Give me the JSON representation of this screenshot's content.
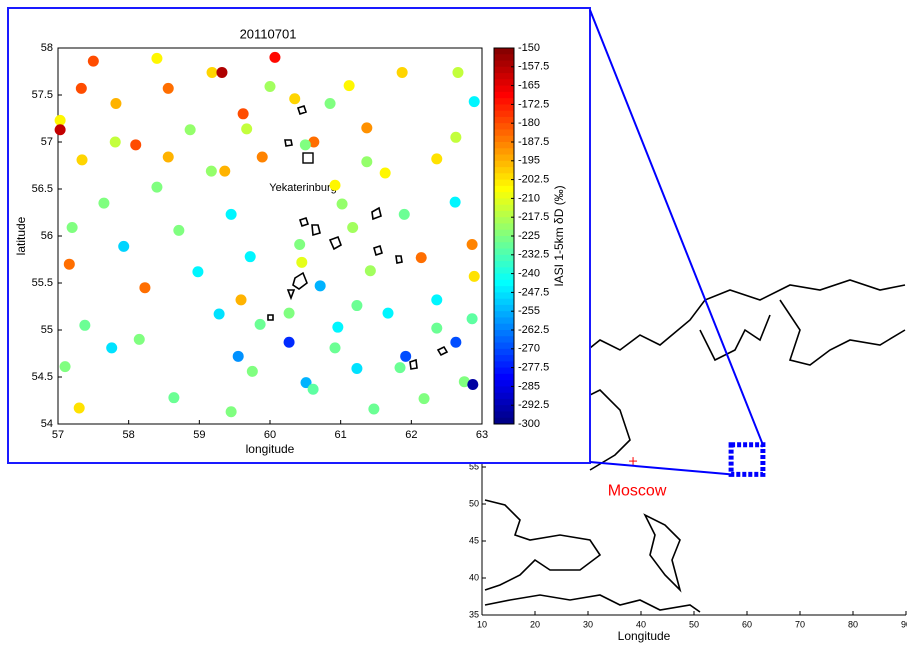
{
  "chart_data": [
    {
      "type": "scatter",
      "title": "20110701",
      "xlabel": "longitude",
      "ylabel": "latitude",
      "colorbar_label": "IASI 1-5km δD (‰)",
      "annotation": "Yekaterinburg",
      "xlim": [
        57,
        63
      ],
      "ylim": [
        54,
        58
      ],
      "xticks": [
        57,
        58,
        59,
        60,
        61,
        62,
        63
      ],
      "yticks": [
        54,
        54.5,
        55,
        55.5,
        56,
        56.5,
        57,
        57.5,
        58
      ],
      "clim": [
        -300,
        -150
      ],
      "colormap": "jet",
      "cticks": [
        -150,
        -157.5,
        -165,
        -172.5,
        -180,
        -187.5,
        -195,
        -202.5,
        -210,
        -217.5,
        -225,
        -232.5,
        -240,
        -247.5,
        -255,
        -262.5,
        -270,
        -277.5,
        -285,
        -292.5,
        -300
      ],
      "x": [
        57.5,
        58.4,
        59.18,
        59.32,
        60.07,
        57.03,
        57.03,
        57.33,
        57.82,
        58.56,
        59.62,
        60.0,
        60.35,
        61.12,
        60.85,
        61.87,
        62.89,
        62.66,
        57.34,
        57.81,
        58.1,
        58.87,
        58.56,
        59.17,
        59.36,
        59.67,
        59.89,
        60.62,
        60.5,
        61.37,
        61.37,
        61.63,
        62.36,
        62.63,
        57.65,
        58.4,
        59.45,
        57.2,
        57.93,
        58.71,
        59.72,
        60.92,
        61.02,
        61.17,
        61.9,
        62.62,
        62.86,
        57.16,
        58.23,
        58.98,
        60.42,
        60.45,
        60.71,
        61.42,
        62.14,
        62.89,
        57.38,
        58.15,
        57.76,
        59.28,
        59.59,
        60.27,
        61.23,
        61.67,
        60.96,
        62.36,
        62.86,
        59.86,
        62.36,
        60.27,
        59.55,
        60.92,
        59.75,
        61.92,
        62.63,
        61.23,
        61.84,
        57.1,
        58.64,
        60.51,
        60.61,
        62.75,
        62.87,
        57.3,
        59.45,
        61.47,
        62.18
      ],
      "values": [
        57.86,
        57.89,
        57.74,
        57.74,
        57.9,
        57.23,
        57.13,
        57.57,
        57.41,
        57.57,
        57.3,
        57.59,
        57.46,
        57.6,
        57.41,
        57.74,
        57.43,
        57.74,
        56.81,
        57.0,
        56.97,
        57.13,
        56.84,
        56.69,
        56.69,
        57.14,
        56.84,
        57.0,
        56.97,
        57.15,
        56.79,
        56.67,
        56.82,
        57.05,
        56.35,
        56.52,
        56.23,
        56.09,
        55.89,
        56.06,
        55.78,
        56.54,
        56.34,
        56.09,
        56.23,
        56.36,
        55.91,
        55.7,
        55.45,
        55.62,
        55.91,
        55.72,
        55.47,
        55.63,
        55.77,
        55.57,
        55.05,
        54.9,
        54.81,
        55.17,
        55.32,
        55.18,
        55.26,
        55.18,
        55.03,
        55.32,
        55.12,
        55.06,
        55.02,
        54.87,
        54.72,
        54.81,
        54.56,
        54.72,
        54.87,
        54.59,
        54.6,
        54.61,
        54.28,
        54.44,
        54.37,
        54.45,
        54.42,
        54.17,
        54.13,
        54.16,
        54.27
      ],
      "z": [
        -180,
        -205,
        -200,
        -157,
        -170,
        -205,
        -160,
        -180,
        -195,
        -185,
        -180,
        -220,
        -200,
        -205,
        -225,
        -200,
        -245,
        -215,
        -200,
        -215,
        -180,
        -222,
        -195,
        -222,
        -195,
        -215,
        -188,
        -185,
        -225,
        -190,
        -222,
        -205,
        -202,
        -215,
        -225,
        -225,
        -245,
        -225,
        -250,
        -225,
        -245,
        -205,
        -222,
        -220,
        -228,
        -245,
        -188,
        -185,
        -185,
        -245,
        -225,
        -210,
        -255,
        -220,
        -185,
        -202,
        -228,
        -225,
        -248,
        -248,
        -195,
        -225,
        -228,
        -245,
        -245,
        -245,
        -230,
        -228,
        -228,
        -275,
        -260,
        -228,
        -225,
        -270,
        -270,
        -248,
        -228,
        -225,
        -228,
        -255,
        -230,
        -225,
        -295,
        -202,
        -225,
        -228,
        -225
      ]
    },
    {
      "type": "map",
      "xlabel": "Longitude",
      "xlim": [
        10,
        90
      ],
      "ylim": [
        35,
        80
      ],
      "xticks": [
        10,
        20,
        30,
        40,
        50,
        60,
        70,
        80,
        90
      ],
      "yticks": [
        35,
        40,
        45,
        50,
        55
      ],
      "city": {
        "name": "Moscow",
        "x": 38.5,
        "y": 55.8,
        "color": "#ff0000"
      },
      "region": {
        "xlim": [
          57,
          63
        ],
        "ylim": [
          54,
          58
        ],
        "color": "#0000ff"
      }
    }
  ]
}
